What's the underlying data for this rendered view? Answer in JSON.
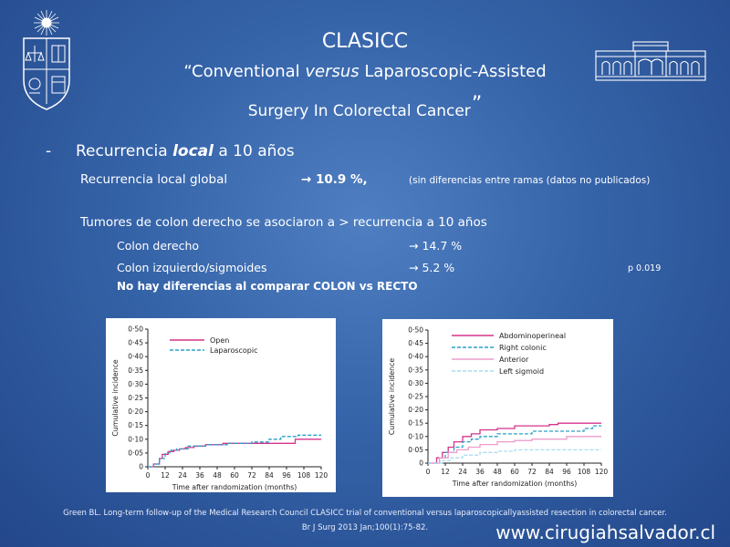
{
  "slide": {
    "title": "CLASICC",
    "subtitle_part1": "“Conventional ",
    "subtitle_italic": "versus",
    "subtitle_part2": " Laparoscopic-Assisted",
    "subtitle_line2": "Surgery In Colorectal Cancer",
    "subtitle_quote_close": "”"
  },
  "bullet": {
    "dash": "-",
    "text_before": "Recurrencia ",
    "text_emph": "local",
    "text_after": " a 10 años"
  },
  "global": {
    "label": "Recurrencia local global",
    "value": "→ 10.9 %,",
    "note": "(sin diferencias entre ramas (datos no publicados)"
  },
  "tumors": {
    "heading": "Tumores de colon derecho se asociaron a > recurrencia a 10 años",
    "right_label": "Colon derecho",
    "right_value": "→ 14.7  %",
    "left_label": "Colon izquierdo/sigmoides",
    "left_value": "→   5.2  %",
    "p_value": "p 0.019",
    "no_diff": "No hay diferencias al comparar COLON vs RECTO"
  },
  "reference": {
    "line1": "Green BL. Long-term follow-up of the Medical Research Council CLASICC trial of conventional versus laparoscopicallyassisted resection in colorectal cancer.",
    "line2": "Br J Surg 2013 Jan;100(1):75-82."
  },
  "url": "www.cirugiahsalvador.cl",
  "colors": {
    "open": "#d6338a",
    "laparoscopic": "#2aa0c8",
    "abdominoperineal": "#d6338a",
    "right_colonic": "#2aa0c8",
    "anterior": "#ee9ccc",
    "left_sigmoid": "#a7dcf1"
  },
  "chart_data": [
    {
      "type": "line",
      "xlabel": "Time after randomization (months)",
      "ylabel": "Cumulative incidence",
      "xlim": [
        0,
        120
      ],
      "ylim": [
        0,
        0.5
      ],
      "xticks": [
        0,
        12,
        24,
        36,
        48,
        60,
        72,
        84,
        96,
        108,
        120
      ],
      "yticks": [
        0,
        0.05,
        0.1,
        0.15,
        0.2,
        0.25,
        0.3,
        0.35,
        0.4,
        0.45,
        0.5
      ],
      "ytick_labels": [
        "0",
        "0·05",
        "0·10",
        "0·15",
        "0·20",
        "0·25",
        "0·30",
        "0·35",
        "0·40",
        "0·45",
        "0·50"
      ],
      "legend_position": "top-left",
      "series": [
        {
          "name": "Open",
          "color_key": "open",
          "dash": false,
          "x": [
            0,
            4,
            8,
            10,
            14,
            18,
            22,
            26,
            32,
            40,
            52,
            96,
            102,
            108,
            120
          ],
          "y": [
            0,
            0.01,
            0.03,
            0.045,
            0.055,
            0.06,
            0.065,
            0.07,
            0.075,
            0.08,
            0.085,
            0.085,
            0.1,
            0.1,
            0.1
          ]
        },
        {
          "name": "Laparoscopic",
          "color_key": "laparoscopic",
          "dash": true,
          "x": [
            0,
            4,
            8,
            12,
            16,
            20,
            28,
            40,
            56,
            72,
            84,
            92,
            104,
            120
          ],
          "y": [
            0,
            0.01,
            0.03,
            0.05,
            0.06,
            0.065,
            0.075,
            0.08,
            0.085,
            0.09,
            0.1,
            0.11,
            0.115,
            0.115
          ]
        }
      ]
    },
    {
      "type": "line",
      "xlabel": "Time after randomization (months)",
      "ylabel": "Cumulative incidence",
      "xlim": [
        0,
        120
      ],
      "ylim": [
        0,
        0.5
      ],
      "xticks": [
        0,
        12,
        24,
        36,
        48,
        60,
        72,
        84,
        96,
        108,
        120
      ],
      "yticks": [
        0,
        0.05,
        0.1,
        0.15,
        0.2,
        0.25,
        0.3,
        0.35,
        0.4,
        0.45,
        0.5
      ],
      "ytick_labels": [
        "0",
        "0·05",
        "0·10",
        "0·15",
        "0·20",
        "0·25",
        "0·30",
        "0·35",
        "0·40",
        "0·45",
        "0·50"
      ],
      "legend_position": "top-left",
      "series": [
        {
          "name": "Abdominoperineal",
          "color_key": "abdominoperineal",
          "dash": false,
          "x": [
            0,
            6,
            10,
            14,
            18,
            24,
            30,
            36,
            48,
            60,
            72,
            84,
            90,
            108,
            114,
            120
          ],
          "y": [
            0,
            0.02,
            0.04,
            0.06,
            0.08,
            0.1,
            0.11,
            0.125,
            0.13,
            0.14,
            0.14,
            0.145,
            0.15,
            0.15,
            0.15,
            0.15
          ]
        },
        {
          "name": "Right colonic",
          "color_key": "right_colonic",
          "dash": true,
          "x": [
            0,
            8,
            12,
            18,
            24,
            30,
            36,
            48,
            60,
            72,
            84,
            96,
            108,
            114,
            120
          ],
          "y": [
            0,
            0.02,
            0.04,
            0.06,
            0.08,
            0.09,
            0.1,
            0.11,
            0.11,
            0.12,
            0.12,
            0.12,
            0.13,
            0.14,
            0.14
          ]
        },
        {
          "name": "Anterior",
          "color_key": "anterior",
          "dash": false,
          "x": [
            0,
            8,
            14,
            20,
            28,
            36,
            48,
            60,
            72,
            84,
            96,
            108,
            120
          ],
          "y": [
            0,
            0.02,
            0.04,
            0.05,
            0.06,
            0.07,
            0.08,
            0.085,
            0.09,
            0.09,
            0.1,
            0.1,
            0.1
          ]
        },
        {
          "name": "Left sigmoid",
          "color_key": "left_sigmoid",
          "dash": true,
          "x": [
            0,
            10,
            16,
            24,
            36,
            48,
            60,
            120
          ],
          "y": [
            0,
            0.01,
            0.02,
            0.03,
            0.04,
            0.045,
            0.05,
            0.05
          ]
        }
      ]
    }
  ]
}
